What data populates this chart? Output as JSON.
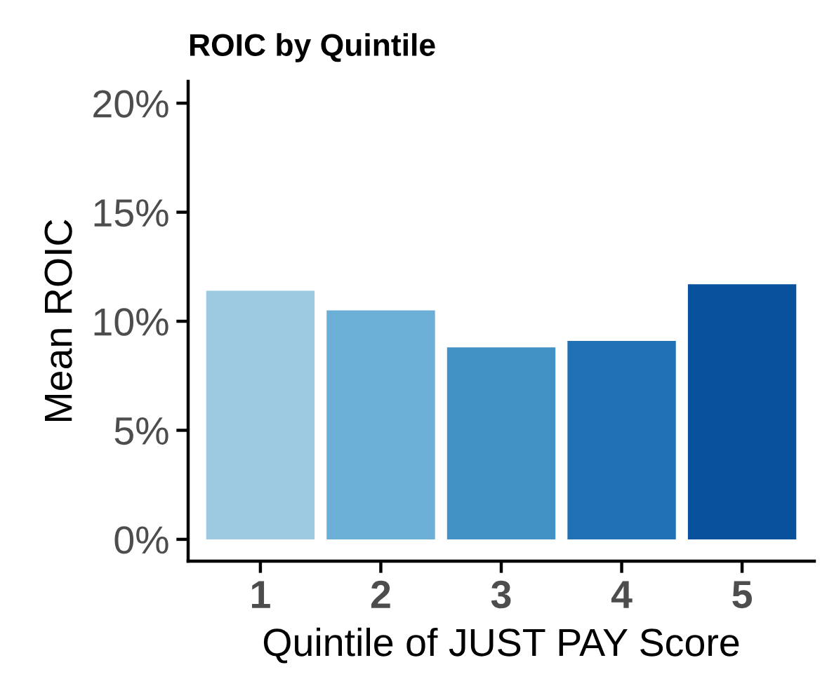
{
  "chart_data": {
    "type": "bar",
    "title": "ROIC by Quintile",
    "xlabel": "Quintile of JUST PAY Score",
    "ylabel": "Mean ROIC",
    "categories": [
      "1",
      "2",
      "3",
      "4",
      "5"
    ],
    "values": [
      11.4,
      10.5,
      8.8,
      9.1,
      11.7
    ],
    "colors": [
      "#9ecae1",
      "#6baed6",
      "#4292c6",
      "#2171b5",
      "#08519c"
    ],
    "ylim": [
      -1,
      21
    ],
    "yticks": [
      {
        "value": 0,
        "label": "0%"
      },
      {
        "value": 5,
        "label": "5%"
      },
      {
        "value": 10,
        "label": "10%"
      },
      {
        "value": 15,
        "label": "15%"
      },
      {
        "value": 20,
        "label": "20%"
      }
    ],
    "grid": false,
    "legend": false
  }
}
